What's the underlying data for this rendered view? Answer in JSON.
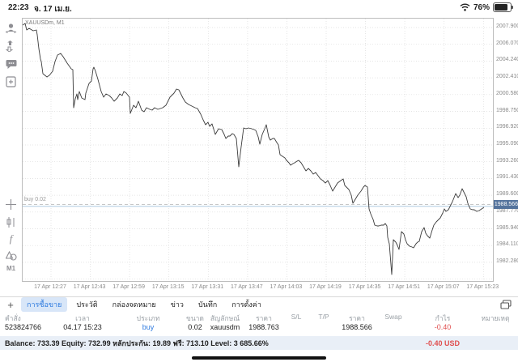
{
  "status_bar": {
    "time": "22:23",
    "date": "จ. 17 เม.ย.",
    "battery_pct": "76%"
  },
  "sidebar": {
    "timeframe": "M1"
  },
  "chart": {
    "symbol_label": "XAUUSDm, M1",
    "buy_line_label": "buy 0.02",
    "current_price": "1988.566",
    "y_axis": [
      "2007.900",
      "2006.070",
      "2004.240",
      "2002.410",
      "2000.580",
      "1998.750",
      "1996.920",
      "1995.090",
      "1993.260",
      "1991.430",
      "1989.600",
      "1987.770",
      "1985.940",
      "1984.110",
      "1982.280"
    ],
    "x_axis": [
      "17 Apr 12:27",
      "17 Apr 12:43",
      "17 Apr 12:59",
      "17 Apr 13:15",
      "17 Apr 13:31",
      "17 Apr 13:47",
      "17 Apr 14:03",
      "17 Apr 14:19",
      "17 Apr 14:35",
      "17 Apr 14:51",
      "17 Apr 15:07",
      "17 Apr 15:23"
    ],
    "line_points": "27,30 30,28 32,36 35,34 40,37 44,36 45,42 47,59 49,72 50,75 52,90 57,94 60,92 64,87 67,75 70,67 74,65 77,69 82,77 87,84 89,85 90,132 92,121 94,115 95,122 97,112 100,120 104,122 105,114 109,102 112,99 114,84 115,82 117,87 120,97 124,112 127,119 130,115 134,117 137,120 140,124 144,120 147,115 150,117 152,112 155,114 159,119 160,139 164,129 167,132 170,124 174,135 177,137 180,132 184,134 187,135 190,132 194,134 200,132 204,129 209,119 214,114 217,109 220,110 225,120 228,125 232,128 236,130 240,132 243,133 247,140 250,147 253,153 256,150 258,155 261,152 265,165 269,158 273,159 276,165 278,170 281,167 283,167 286,164 288,165 291,170 294,205 297,180 300,157 303,158 306,157 310,158 313,159 315,160 318,168 320,177 323,165 326,158 328,153 331,168 333,172 336,170 338,170 341,175 343,178 345,190 348,192 351,194 353,197 356,200 358,203 361,201 363,200 366,198 368,197 371,200 374,205 377,210 380,207 383,210 386,214 389,212 392,216 395,220 398,222 401,225 404,222 407,228 410,235 413,230 416,225 420,222 423,220 425,228 428,231 430,233 433,240 435,250 438,245 441,240 445,235 448,230 450,228 453,230 455,257 457,263 460,270 462,277 465,278 467,278 470,277 473,277 475,275 477,278 478,292 480,300 483,338 485,295 488,298 490,302 492,307 495,285 498,288 500,295 502,300 505,303 508,304 510,305 513,300 515,298 517,297 520,285 523,280 525,287 527,290 530,293 533,283 535,277 538,273 541,270 543,268 546,262 548,257 550,260 553,258 556,252 558,248 560,243 562,238 565,243 567,240 570,232 572,236 575,242 577,250 580,257 583,258 585,258 588,260 591,259 594,257 597,255",
    "colors": {
      "line": "#3a3a3a",
      "grid": "#dcdcdc",
      "buy_line": "#b5b5b5",
      "price_line": "#a3c2de",
      "price_badge": "#54739c"
    }
  },
  "chart_data": {
    "type": "line",
    "title": "XAUUSDm, M1",
    "xlabel_ticks": [
      "17 Apr 12:27",
      "17 Apr 12:43",
      "17 Apr 12:59",
      "17 Apr 13:15",
      "17 Apr 13:31",
      "17 Apr 13:47",
      "17 Apr 14:03",
      "17 Apr 14:19",
      "17 Apr 14:35",
      "17 Apr 14:51",
      "17 Apr 15:07",
      "17 Apr 15:23"
    ],
    "ylim": [
      1982.28,
      2007.9
    ],
    "key_points": {
      "start": 2008.0,
      "high": 2008.1,
      "low": 1982.4,
      "low_time": "17 Apr 14:35",
      "last": 1988.566,
      "buy_entry": 1988.763
    },
    "legend": []
  },
  "tabs": {
    "items": [
      {
        "label": "การซื้อขาย",
        "selected": true
      },
      {
        "label": "ประวัติ",
        "selected": false
      },
      {
        "label": "กล่องจดหมาย",
        "selected": false
      },
      {
        "label": "ข่าว",
        "selected": false
      },
      {
        "label": "บันทึก",
        "selected": false
      },
      {
        "label": "การตั้งค่า",
        "selected": false
      }
    ]
  },
  "positions_table": {
    "headers": [
      "คำสั่ง",
      "เวลา",
      "ประเภท",
      "ขนาด",
      "สัญลักษณ์",
      "ราคา",
      "S/L",
      "T/P",
      "ราคา",
      "Swap",
      "กำไร",
      "หมายเหตุ"
    ],
    "row": [
      "523824766",
      "04.17 15:23",
      "buy",
      "0.02",
      "xauusdm",
      "1988.763",
      "",
      "",
      "1988.566",
      "",
      "-0.40",
      ""
    ]
  },
  "summary": {
    "balance_line": "Balance: 733.39 Equity: 732.99 หลักประกัน: 19.89 ฟรี: 713.10 Level: 3 685.66%",
    "profit": "-0.40  USD"
  }
}
